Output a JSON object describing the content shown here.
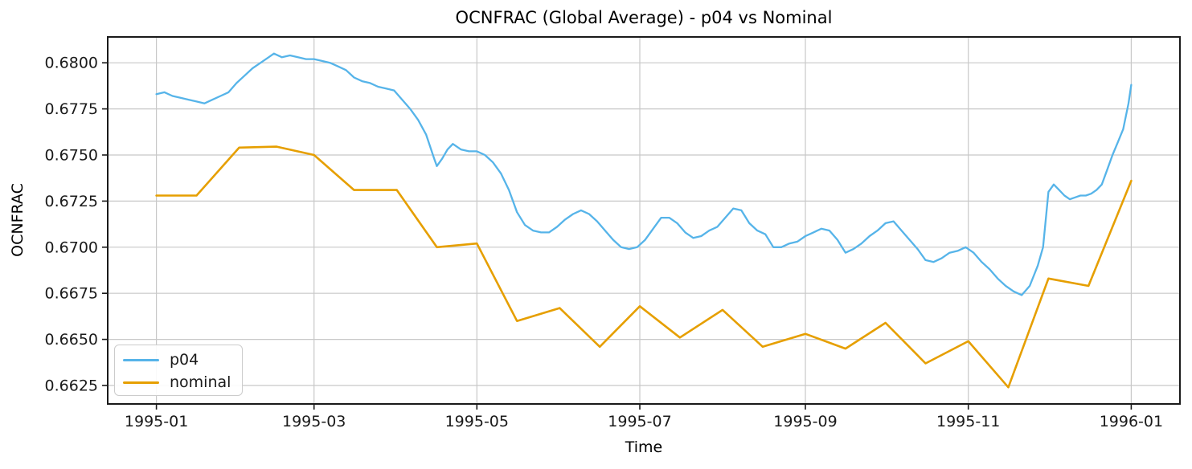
{
  "chart_data": {
    "type": "line",
    "title": "OCNFRAC (Global Average) - p04 vs Nominal",
    "xlabel": "Time",
    "ylabel": "OCNFRAC",
    "grid": true,
    "legend_position": "lower left",
    "axis_color": "#1a1a1a",
    "grid_color": "#c8c8c8",
    "xlim_days": [
      -18.25,
      383.25
    ],
    "ylim": [
      0.6615,
      0.6814
    ],
    "x_ticks": [
      {
        "date": "1995-01-01",
        "label": "1995-01"
      },
      {
        "date": "1995-03-01",
        "label": "1995-03"
      },
      {
        "date": "1995-05-01",
        "label": "1995-05"
      },
      {
        "date": "1995-07-01",
        "label": "1995-07"
      },
      {
        "date": "1995-09-01",
        "label": "1995-09"
      },
      {
        "date": "1995-11-01",
        "label": "1995-11"
      },
      {
        "date": "1996-01-01",
        "label": "1996-01"
      }
    ],
    "y_ticks": [
      {
        "value": 0.6625,
        "label": "0.6625"
      },
      {
        "value": 0.665,
        "label": "0.6650"
      },
      {
        "value": 0.6675,
        "label": "0.6675"
      },
      {
        "value": 0.67,
        "label": "0.6700"
      },
      {
        "value": 0.6725,
        "label": "0.6725"
      },
      {
        "value": 0.675,
        "label": "0.6750"
      },
      {
        "value": 0.6775,
        "label": "0.6775"
      },
      {
        "value": 0.68,
        "label": "0.6800"
      }
    ],
    "series": [
      {
        "name": "p04",
        "color": "#56b4e9",
        "line_width": 2.3,
        "points": [
          [
            "1995-01-01",
            0.6783
          ],
          [
            "1995-01-04",
            0.6784
          ],
          [
            "1995-01-07",
            0.6782
          ],
          [
            "1995-01-10",
            0.6781
          ],
          [
            "1995-01-13",
            0.678
          ],
          [
            "1995-01-16",
            0.6779
          ],
          [
            "1995-01-19",
            0.6778
          ],
          [
            "1995-01-22",
            0.678
          ],
          [
            "1995-01-25",
            0.6782
          ],
          [
            "1995-01-28",
            0.6784
          ],
          [
            "1995-01-31",
            0.6789
          ],
          [
            "1995-02-03",
            0.6793
          ],
          [
            "1995-02-06",
            0.6797
          ],
          [
            "1995-02-09",
            0.68
          ],
          [
            "1995-02-12",
            0.6803
          ],
          [
            "1995-02-14",
            0.6805
          ],
          [
            "1995-02-17",
            0.6803
          ],
          [
            "1995-02-20",
            0.6804
          ],
          [
            "1995-02-23",
            0.6803
          ],
          [
            "1995-02-26",
            0.6802
          ],
          [
            "1995-03-01",
            0.6802
          ],
          [
            "1995-03-04",
            0.6801
          ],
          [
            "1995-03-07",
            0.68
          ],
          [
            "1995-03-10",
            0.6798
          ],
          [
            "1995-03-13",
            0.6796
          ],
          [
            "1995-03-16",
            0.6792
          ],
          [
            "1995-03-19",
            0.679
          ],
          [
            "1995-03-22",
            0.6789
          ],
          [
            "1995-03-25",
            0.6787
          ],
          [
            "1995-03-28",
            0.6786
          ],
          [
            "1995-03-31",
            0.6785
          ],
          [
            "1995-04-03",
            0.678
          ],
          [
            "1995-04-06",
            0.6775
          ],
          [
            "1995-04-09",
            0.6769
          ],
          [
            "1995-04-12",
            0.6761
          ],
          [
            "1995-04-15",
            0.6748
          ],
          [
            "1995-04-16",
            0.6744
          ],
          [
            "1995-04-18",
            0.6748
          ],
          [
            "1995-04-20",
            0.6753
          ],
          [
            "1995-04-22",
            0.6756
          ],
          [
            "1995-04-25",
            0.6753
          ],
          [
            "1995-04-28",
            0.6752
          ],
          [
            "1995-05-01",
            0.6752
          ],
          [
            "1995-05-04",
            0.675
          ],
          [
            "1995-05-07",
            0.6746
          ],
          [
            "1995-05-10",
            0.674
          ],
          [
            "1995-05-13",
            0.6731
          ],
          [
            "1995-05-16",
            0.6719
          ],
          [
            "1995-05-19",
            0.6712
          ],
          [
            "1995-05-22",
            0.6709
          ],
          [
            "1995-05-25",
            0.6708
          ],
          [
            "1995-05-28",
            0.6708
          ],
          [
            "1995-05-31",
            0.6711
          ],
          [
            "1995-06-03",
            0.6715
          ],
          [
            "1995-06-06",
            0.6718
          ],
          [
            "1995-06-09",
            0.672
          ],
          [
            "1995-06-12",
            0.6718
          ],
          [
            "1995-06-15",
            0.6714
          ],
          [
            "1995-06-18",
            0.6709
          ],
          [
            "1995-06-21",
            0.6704
          ],
          [
            "1995-06-24",
            0.67
          ],
          [
            "1995-06-27",
            0.6699
          ],
          [
            "1995-06-30",
            0.67
          ],
          [
            "1995-07-03",
            0.6704
          ],
          [
            "1995-07-06",
            0.671
          ],
          [
            "1995-07-09",
            0.6716
          ],
          [
            "1995-07-12",
            0.6716
          ],
          [
            "1995-07-15",
            0.6713
          ],
          [
            "1995-07-18",
            0.6708
          ],
          [
            "1995-07-21",
            0.6705
          ],
          [
            "1995-07-24",
            0.6706
          ],
          [
            "1995-07-27",
            0.6709
          ],
          [
            "1995-07-30",
            0.6711
          ],
          [
            "1995-08-02",
            0.6716
          ],
          [
            "1995-08-05",
            0.6721
          ],
          [
            "1995-08-08",
            0.672
          ],
          [
            "1995-08-11",
            0.6713
          ],
          [
            "1995-08-14",
            0.6709
          ],
          [
            "1995-08-17",
            0.6707
          ],
          [
            "1995-08-20",
            0.67
          ],
          [
            "1995-08-23",
            0.67
          ],
          [
            "1995-08-26",
            0.6702
          ],
          [
            "1995-08-29",
            0.6703
          ],
          [
            "1995-09-01",
            0.6706
          ],
          [
            "1995-09-04",
            0.6708
          ],
          [
            "1995-09-07",
            0.671
          ],
          [
            "1995-09-10",
            0.6709
          ],
          [
            "1995-09-13",
            0.6704
          ],
          [
            "1995-09-16",
            0.6697
          ],
          [
            "1995-09-19",
            0.6699
          ],
          [
            "1995-09-22",
            0.6702
          ],
          [
            "1995-09-25",
            0.6706
          ],
          [
            "1995-09-28",
            0.6709
          ],
          [
            "1995-10-01",
            0.6713
          ],
          [
            "1995-10-04",
            0.6714
          ],
          [
            "1995-10-07",
            0.6709
          ],
          [
            "1995-10-10",
            0.6704
          ],
          [
            "1995-10-13",
            0.6699
          ],
          [
            "1995-10-16",
            0.6693
          ],
          [
            "1995-10-19",
            0.6692
          ],
          [
            "1995-10-22",
            0.6694
          ],
          [
            "1995-10-25",
            0.6697
          ],
          [
            "1995-10-28",
            0.6698
          ],
          [
            "1995-10-31",
            0.67
          ],
          [
            "1995-11-03",
            0.6697
          ],
          [
            "1995-11-06",
            0.6692
          ],
          [
            "1995-11-09",
            0.6688
          ],
          [
            "1995-11-12",
            0.6683
          ],
          [
            "1995-11-15",
            0.6679
          ],
          [
            "1995-11-18",
            0.6676
          ],
          [
            "1995-11-21",
            0.6674
          ],
          [
            "1995-11-24",
            0.6679
          ],
          [
            "1995-11-27",
            0.669
          ],
          [
            "1995-11-29",
            0.67
          ],
          [
            "1995-12-01",
            0.673
          ],
          [
            "1995-12-03",
            0.6734
          ],
          [
            "1995-12-05",
            0.6731
          ],
          [
            "1995-12-07",
            0.6728
          ],
          [
            "1995-12-09",
            0.6726
          ],
          [
            "1995-12-11",
            0.6727
          ],
          [
            "1995-12-13",
            0.6728
          ],
          [
            "1995-12-15",
            0.6728
          ],
          [
            "1995-12-17",
            0.6729
          ],
          [
            "1995-12-19",
            0.6731
          ],
          [
            "1995-12-21",
            0.6734
          ],
          [
            "1995-12-23",
            0.6742
          ],
          [
            "1995-12-25",
            0.675
          ],
          [
            "1995-12-27",
            0.6757
          ],
          [
            "1995-12-29",
            0.6764
          ],
          [
            "1995-12-31",
            0.6778
          ],
          [
            "1996-01-01",
            0.6788
          ]
        ]
      },
      {
        "name": "nominal",
        "color": "#e69f00",
        "line_width": 2.6,
        "points": [
          [
            "1995-01-01",
            0.6728
          ],
          [
            "1995-01-16",
            0.6728
          ],
          [
            "1995-02-01",
            0.6754
          ],
          [
            "1995-02-15",
            0.67545
          ],
          [
            "1995-03-01",
            0.675
          ],
          [
            "1995-03-16",
            0.6731
          ],
          [
            "1995-04-01",
            0.6731
          ],
          [
            "1995-04-16",
            0.67
          ],
          [
            "1995-05-01",
            0.6702
          ],
          [
            "1995-05-16",
            0.666
          ],
          [
            "1995-06-01",
            0.6667
          ],
          [
            "1995-06-16",
            0.6646
          ],
          [
            "1995-07-01",
            0.6668
          ],
          [
            "1995-07-16",
            0.6651
          ],
          [
            "1995-08-01",
            0.6666
          ],
          [
            "1995-08-16",
            0.6646
          ],
          [
            "1995-09-01",
            0.6653
          ],
          [
            "1995-09-16",
            0.6645
          ],
          [
            "1995-10-01",
            0.6659
          ],
          [
            "1995-10-16",
            0.6637
          ],
          [
            "1995-11-01",
            0.6649
          ],
          [
            "1995-11-16",
            0.6624
          ],
          [
            "1995-12-01",
            0.6683
          ],
          [
            "1995-12-16",
            0.6679
          ],
          [
            "1996-01-01",
            0.6736
          ]
        ]
      }
    ]
  }
}
